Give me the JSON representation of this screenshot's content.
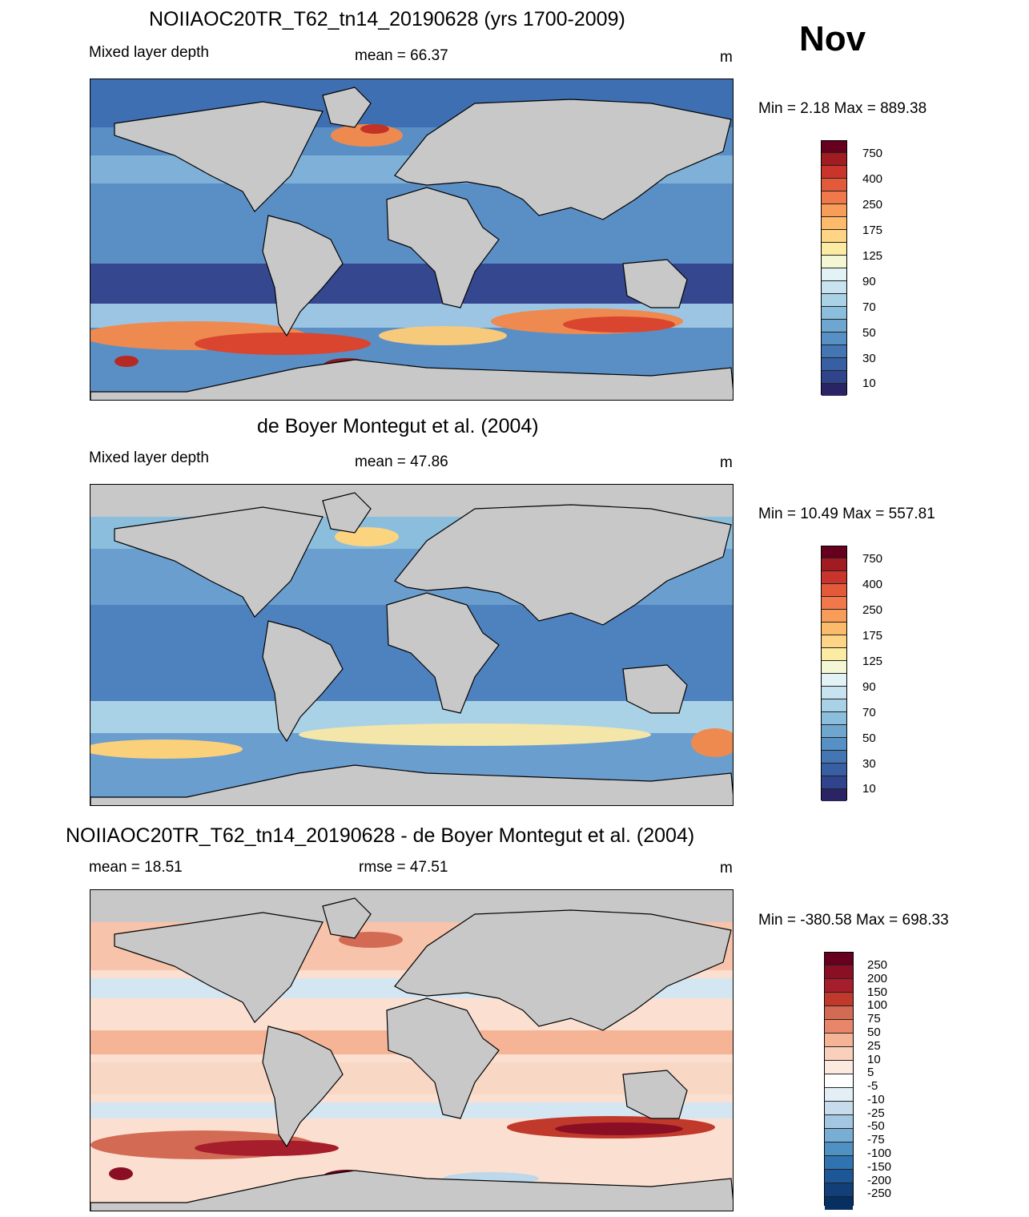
{
  "month": "Nov",
  "colors": {
    "land": "#c8c8c8",
    "coast": "#000000"
  },
  "panels": [
    {
      "title": "NOIIAOC20TR_T62_tn14_20190628 (yrs 1700-2009)",
      "left_label": "Mixed layer depth",
      "center_label": "mean =  66.37",
      "units": "m",
      "minmax": "Min =   2.18 Max = 889.38",
      "colorbar_labels": [
        "750",
        "400",
        "250",
        "175",
        "125",
        "90",
        "70",
        "50",
        "30",
        "10"
      ]
    },
    {
      "title": "de Boyer Montegut et al. (2004)",
      "left_label": "Mixed layer depth",
      "center_label": "mean =  47.86",
      "units": "m",
      "minmax": "Min =  10.49 Max = 557.81",
      "colorbar_labels": [
        "750",
        "400",
        "250",
        "175",
        "125",
        "90",
        "70",
        "50",
        "30",
        "10"
      ]
    },
    {
      "title": "NOIIAOC20TR_T62_tn14_20190628 - de Boyer Montegut et al. (2004)",
      "left_label": "mean =  18.51",
      "center_label": "rmse =  47.51",
      "units": "m",
      "minmax": "Min = -380.58 Max = 698.33",
      "colorbar_labels": [
        "250",
        "200",
        "150",
        "100",
        "75",
        "50",
        "25",
        "10",
        "5",
        "-5",
        "-10",
        "-25",
        "-50",
        "-75",
        "-100",
        "-150",
        "-200",
        "-250"
      ]
    }
  ]
}
